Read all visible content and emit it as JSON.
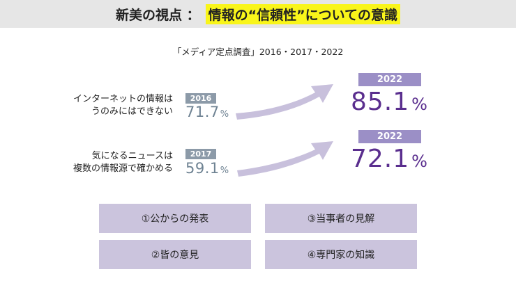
{
  "header": {
    "lead": "新美の視点 ：",
    "highlight": "情報の“信頼性”についての意識"
  },
  "survey_title": "「メディア定点調査」2016・2017・2022",
  "rows": [
    {
      "label_line1": "インターネットの情報は",
      "label_line2": "うのみにはできない",
      "old_year": "2016",
      "old_value": "71.7",
      "old_unit": "%",
      "new_year": "2022",
      "new_value": "85.1",
      "new_unit": "%"
    },
    {
      "label_line1": "気になるニュースは",
      "label_line2": "複数の情報源で確かめる",
      "old_year": "2017",
      "old_value": "59.1",
      "old_unit": "%",
      "new_year": "2022",
      "new_value": "72.1",
      "new_unit": "%"
    }
  ],
  "sources": [
    {
      "label": "①公からの発表"
    },
    {
      "label": "③当事者の見解"
    },
    {
      "label": "②皆の意見"
    },
    {
      "label": "④専門家の知識"
    }
  ],
  "colors": {
    "arrow": "#c8c0dc",
    "new_value": "#5a2e8e",
    "old_value": "#6f8393",
    "highlight": "#f9f51a"
  }
}
